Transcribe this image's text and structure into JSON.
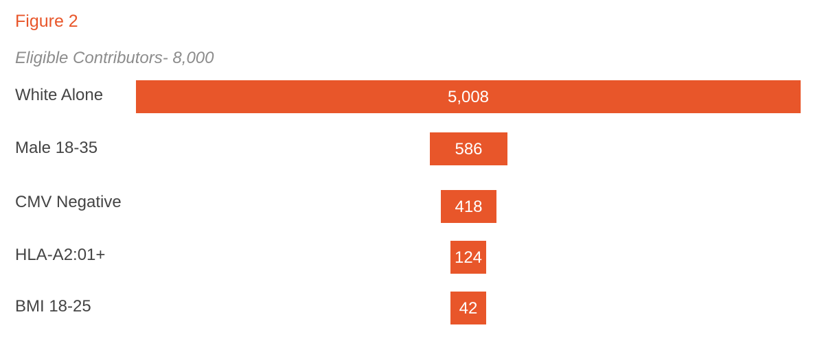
{
  "figure_label": "Figure 2",
  "chart_data": {
    "type": "bar",
    "title": "Eligible Contributors- 8,000",
    "orientation": "horizontal",
    "alignment": "centered",
    "categories": [
      "White Alone",
      "Male 18-35",
      "CMV Negative",
      "HLA-A2:01+",
      "BMI 18-25"
    ],
    "values": [
      5008,
      586,
      418,
      124,
      42
    ],
    "value_labels": [
      "5,008",
      "586",
      "418",
      "124",
      "42"
    ],
    "colors": {
      "bar": "#e8562a",
      "value_text": "#ffffff"
    }
  }
}
